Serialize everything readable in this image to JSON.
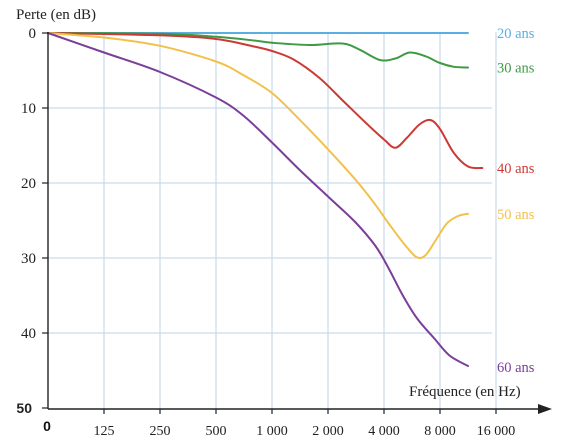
{
  "chart_data": {
    "type": "line",
    "ylabel": "Perte (en dB)",
    "xlabel": "Fréquence (en Hz)",
    "origin_label": "0",
    "x_ticks": [
      "125",
      "250",
      "500",
      "1 000",
      "2 000",
      "4 000",
      "8 000",
      "16 000"
    ],
    "y_ticks": [
      0,
      10,
      20,
      30,
      40,
      50
    ],
    "y_tick_labels": [
      "0",
      "10",
      "20",
      "30",
      "40",
      "50"
    ],
    "ylim": [
      0,
      50
    ],
    "y_inverted": true,
    "x_scale": "log2",
    "grid": true,
    "series": [
      {
        "name": "20 ans",
        "color": "#5aaee0",
        "points": [
          [
            62.5,
            0
          ],
          [
            11314,
            0
          ]
        ]
      },
      {
        "name": "30 ans",
        "color": "#3f9a44",
        "points": [
          [
            62.5,
            0
          ],
          [
            250,
            0.1
          ],
          [
            500,
            0.5
          ],
          [
            800,
            1.0
          ],
          [
            1000,
            1.3
          ],
          [
            1600,
            1.6
          ],
          [
            2400,
            1.4
          ],
          [
            3000,
            2.3
          ],
          [
            3800,
            3.6
          ],
          [
            4600,
            3.4
          ],
          [
            5500,
            2.6
          ],
          [
            6700,
            3.1
          ],
          [
            8000,
            4.0
          ],
          [
            9500,
            4.5
          ],
          [
            11314,
            4.6
          ]
        ]
      },
      {
        "name": "40 ans",
        "color": "#cc3a36",
        "points": [
          [
            62.5,
            0
          ],
          [
            250,
            0.3
          ],
          [
            500,
            0.8
          ],
          [
            800,
            1.8
          ],
          [
            1000,
            2.4
          ],
          [
            1300,
            3.5
          ],
          [
            1800,
            6.0
          ],
          [
            2400,
            9.0
          ],
          [
            3200,
            12.0
          ],
          [
            4000,
            14.2
          ],
          [
            4600,
            15.3
          ],
          [
            5300,
            14.0
          ],
          [
            6200,
            12.2
          ],
          [
            7100,
            11.6
          ],
          [
            8000,
            12.8
          ],
          [
            9500,
            16.0
          ],
          [
            11314,
            17.8
          ],
          [
            13500,
            18.0
          ]
        ]
      },
      {
        "name": "50 ans",
        "color": "#f2c14c",
        "points": [
          [
            62.5,
            0
          ],
          [
            125,
            0.6
          ],
          [
            250,
            1.7
          ],
          [
            500,
            3.8
          ],
          [
            700,
            5.6
          ],
          [
            1000,
            8.0
          ],
          [
            1400,
            11.5
          ],
          [
            2000,
            15.5
          ],
          [
            2800,
            19.5
          ],
          [
            3500,
            22.5
          ],
          [
            4300,
            25.6
          ],
          [
            5200,
            28.3
          ],
          [
            6000,
            29.9
          ],
          [
            6700,
            29.6
          ],
          [
            7600,
            27.6
          ],
          [
            8700,
            25.4
          ],
          [
            10000,
            24.4
          ],
          [
            11314,
            24.1
          ]
        ]
      },
      {
        "name": "60 ans",
        "color": "#7a3f98",
        "points": [
          [
            62.5,
            0
          ],
          [
            125,
            2.6
          ],
          [
            250,
            5.2
          ],
          [
            500,
            8.6
          ],
          [
            700,
            11.0
          ],
          [
            1000,
            14.6
          ],
          [
            1400,
            18.2
          ],
          [
            2000,
            21.8
          ],
          [
            2800,
            25.2
          ],
          [
            3600,
            28.4
          ],
          [
            4200,
            31.2
          ],
          [
            5000,
            34.8
          ],
          [
            6000,
            38.0
          ],
          [
            7500,
            40.8
          ],
          [
            9000,
            43.0
          ],
          [
            11314,
            44.4
          ]
        ]
      }
    ]
  }
}
